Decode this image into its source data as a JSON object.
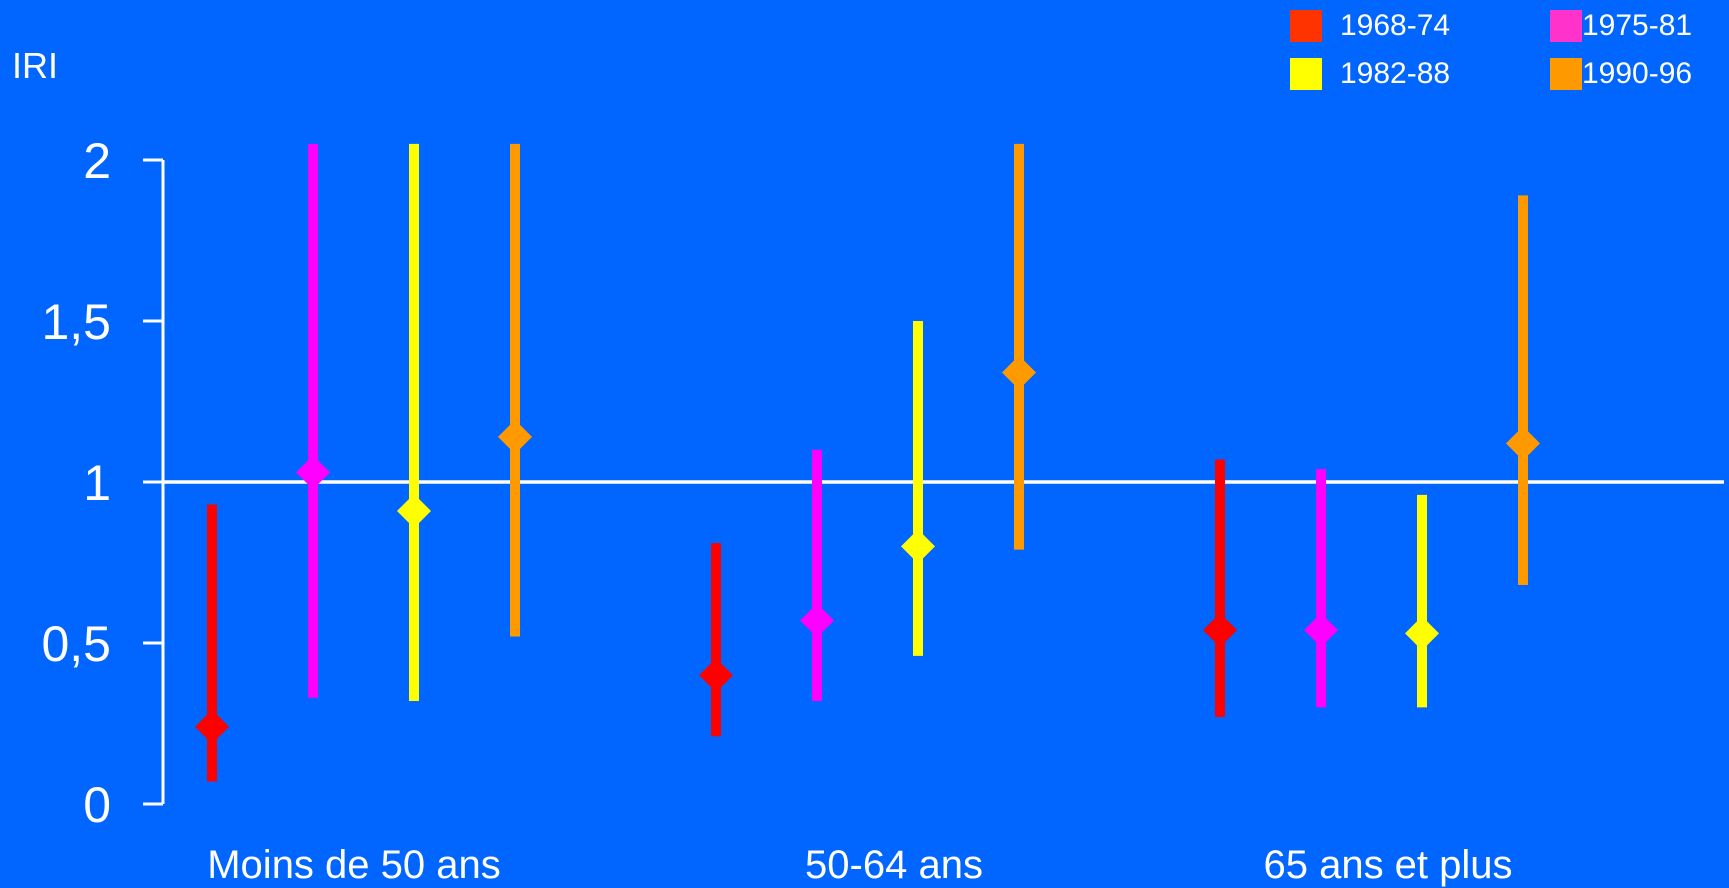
{
  "chart_data": {
    "type": "scatter",
    "subtype": "point-estimates-with-confidence-intervals",
    "title": "",
    "ylabel": "IRI",
    "xlabel": "",
    "ylim": [
      0,
      2
    ],
    "yticks": [
      {
        "value": 0,
        "label": "0"
      },
      {
        "value": 0.5,
        "label": "0,5"
      },
      {
        "value": 1,
        "label": "1"
      },
      {
        "value": 1.5,
        "label": "1,5"
      },
      {
        "value": 2,
        "label": "2"
      }
    ],
    "reference_line": 1,
    "grid": false,
    "legend_position": "top-right",
    "categories": [
      "Moins de 50 ans",
      "50-64 ans",
      "65 ans et plus"
    ],
    "series": [
      {
        "name": "1968-74",
        "color": "#ff0000",
        "legend_color": "#ff3300",
        "values": [
          0.24,
          0.4,
          0.54
        ],
        "lower": [
          0.07,
          0.21,
          0.27
        ],
        "upper": [
          0.93,
          0.81,
          1.07
        ]
      },
      {
        "name": "1975-81",
        "color": "#ff00ff",
        "legend_color": "#ff33cc",
        "values": [
          1.03,
          0.57,
          0.54
        ],
        "lower": [
          0.33,
          0.32,
          0.3
        ],
        "upper": [
          2.05,
          1.1,
          1.04
        ]
      },
      {
        "name": "1982-88",
        "color": "#ffff00",
        "legend_color": "#ffff00",
        "values": [
          0.91,
          0.8,
          0.53
        ],
        "lower": [
          0.32,
          0.46,
          0.3
        ],
        "upper": [
          2.05,
          1.5,
          0.96
        ]
      },
      {
        "name": "1990-96",
        "color": "#ff9900",
        "legend_color": "#ff9900",
        "values": [
          1.14,
          1.34,
          1.12
        ],
        "lower": [
          0.52,
          0.79,
          0.68
        ],
        "upper": [
          2.05,
          2.05,
          1.89
        ]
      }
    ]
  }
}
